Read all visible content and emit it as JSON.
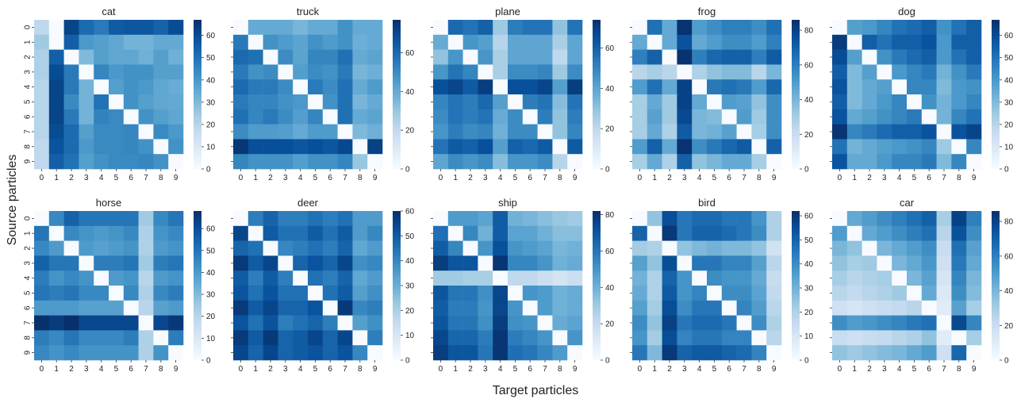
{
  "figure": {
    "ylabel": "Source particles",
    "xlabel": "Target particles",
    "ticks": [
      "0",
      "1",
      "2",
      "3",
      "4",
      "5",
      "6",
      "7",
      "8",
      "9"
    ]
  },
  "colors": {
    "low": "#f7fbff",
    "high": "#08306b"
  },
  "chart_data": [
    {
      "type": "heatmap",
      "title": "cat",
      "vmin": 0,
      "vmax": 67,
      "colorbar_ticks": [
        0,
        10,
        20,
        30,
        40,
        50,
        60
      ],
      "matrix": [
        [
          18,
          0,
          62,
          52,
          48,
          56,
          57,
          57,
          54,
          60
        ],
        [
          25,
          0,
          55,
          40,
          38,
          36,
          32,
          32,
          35,
          35
        ],
        [
          22,
          55,
          0,
          30,
          38,
          36,
          36,
          33,
          38,
          33
        ],
        [
          22,
          60,
          48,
          0,
          45,
          40,
          42,
          42,
          38,
          38
        ],
        [
          20,
          62,
          48,
          32,
          0,
          38,
          42,
          40,
          36,
          34
        ],
        [
          20,
          62,
          44,
          32,
          50,
          0,
          42,
          38,
          36,
          35
        ],
        [
          20,
          62,
          48,
          32,
          46,
          44,
          0,
          42,
          38,
          36
        ],
        [
          20,
          60,
          52,
          38,
          44,
          44,
          45,
          0,
          44,
          40
        ],
        [
          18,
          58,
          52,
          40,
          44,
          44,
          45,
          42,
          0,
          42
        ],
        [
          18,
          55,
          50,
          38,
          42,
          44,
          44,
          45,
          42,
          0
        ]
      ]
    },
    {
      "type": "heatmap",
      "title": "truck",
      "vmin": 0,
      "vmax": 77,
      "colorbar_ticks": [
        0,
        20,
        40,
        60
      ],
      "matrix": [
        [
          0,
          40,
          40,
          40,
          36,
          40,
          40,
          48,
          40,
          40
        ],
        [
          55,
          0,
          48,
          45,
          42,
          48,
          45,
          48,
          38,
          40
        ],
        [
          60,
          58,
          0,
          50,
          42,
          52,
          52,
          58,
          40,
          42
        ],
        [
          55,
          48,
          50,
          0,
          44,
          50,
          48,
          55,
          36,
          38
        ],
        [
          60,
          55,
          55,
          50,
          0,
          55,
          50,
          58,
          40,
          45
        ],
        [
          55,
          52,
          52,
          48,
          46,
          0,
          48,
          58,
          36,
          40
        ],
        [
          58,
          52,
          55,
          50,
          44,
          52,
          0,
          58,
          40,
          42
        ],
        [
          50,
          45,
          45,
          44,
          40,
          45,
          45,
          0,
          35,
          38
        ],
        [
          75,
          68,
          68,
          68,
          66,
          68,
          66,
          70,
          0,
          72
        ],
        [
          52,
          48,
          48,
          48,
          44,
          48,
          48,
          52,
          30,
          0
        ]
      ]
    },
    {
      "type": "heatmap",
      "title": "plane",
      "vmin": 0,
      "vmax": 74,
      "colorbar_ticks": [
        0,
        20,
        40,
        60
      ],
      "matrix": [
        [
          0,
          58,
          55,
          60,
          28,
          52,
          55,
          55,
          30,
          55
        ],
        [
          38,
          0,
          45,
          42,
          22,
          40,
          40,
          40,
          25,
          40
        ],
        [
          30,
          45,
          0,
          45,
          25,
          40,
          40,
          40,
          20,
          40
        ],
        [
          45,
          55,
          50,
          0,
          25,
          48,
          48,
          50,
          28,
          48
        ],
        [
          65,
          68,
          62,
          70,
          0,
          65,
          65,
          68,
          42,
          70
        ],
        [
          50,
          55,
          52,
          58,
          42,
          0,
          52,
          55,
          32,
          55
        ],
        [
          48,
          55,
          52,
          55,
          38,
          48,
          0,
          52,
          30,
          52
        ],
        [
          45,
          52,
          48,
          50,
          36,
          48,
          48,
          0,
          30,
          50
        ],
        [
          55,
          62,
          60,
          65,
          42,
          60,
          58,
          62,
          0,
          62
        ],
        [
          40,
          48,
          45,
          48,
          32,
          45,
          45,
          48,
          22,
          0
        ]
      ]
    },
    {
      "type": "heatmap",
      "title": "frog",
      "vmin": 0,
      "vmax": 86,
      "colorbar_ticks": [
        0,
        20,
        40,
        60,
        80
      ],
      "matrix": [
        [
          0,
          65,
          45,
          85,
          50,
          55,
          60,
          60,
          55,
          65
        ],
        [
          45,
          0,
          45,
          75,
          45,
          50,
          55,
          55,
          50,
          60
        ],
        [
          60,
          70,
          0,
          85,
          60,
          68,
          70,
          70,
          60,
          72
        ],
        [
          25,
          30,
          25,
          0,
          28,
          35,
          38,
          38,
          25,
          40
        ],
        [
          50,
          65,
          45,
          80,
          0,
          62,
          65,
          62,
          50,
          68
        ],
        [
          30,
          45,
          32,
          80,
          45,
          0,
          50,
          48,
          35,
          55
        ],
        [
          30,
          48,
          32,
          78,
          40,
          38,
          0,
          50,
          32,
          55
        ],
        [
          30,
          45,
          28,
          72,
          40,
          42,
          48,
          0,
          30,
          55
        ],
        [
          50,
          70,
          45,
          85,
          55,
          62,
          68,
          72,
          0,
          70
        ],
        [
          30,
          45,
          28,
          70,
          35,
          40,
          45,
          45,
          30,
          0
        ]
      ]
    },
    {
      "type": "heatmap",
      "title": "dog",
      "vmin": 0,
      "vmax": 67,
      "colorbar_ticks": [
        0,
        10,
        20,
        30,
        40,
        50,
        60
      ],
      "matrix": [
        [
          0,
          38,
          40,
          45,
          50,
          52,
          55,
          42,
          50,
          55
        ],
        [
          64,
          0,
          55,
          50,
          55,
          55,
          58,
          40,
          55,
          55
        ],
        [
          60,
          38,
          0,
          42,
          48,
          52,
          55,
          40,
          50,
          55
        ],
        [
          55,
          30,
          38,
          0,
          40,
          45,
          48,
          32,
          42,
          48
        ],
        [
          58,
          30,
          35,
          38,
          0,
          45,
          45,
          30,
          40,
          42
        ],
        [
          55,
          30,
          35,
          40,
          45,
          0,
          42,
          32,
          40,
          45
        ],
        [
          58,
          35,
          38,
          42,
          45,
          48,
          0,
          32,
          45,
          50
        ],
        [
          66,
          45,
          48,
          52,
          55,
          55,
          58,
          0,
          58,
          62
        ],
        [
          50,
          32,
          35,
          38,
          40,
          42,
          45,
          25,
          0,
          45
        ],
        [
          58,
          35,
          35,
          40,
          45,
          45,
          48,
          30,
          45,
          0
        ]
      ]
    },
    {
      "type": "heatmap",
      "title": "horse",
      "vmin": 0,
      "vmax": 68,
      "colorbar_ticks": [
        0,
        10,
        20,
        30,
        40,
        50,
        60
      ],
      "matrix": [
        [
          0,
          45,
          55,
          50,
          50,
          50,
          50,
          25,
          45,
          50
        ],
        [
          50,
          0,
          45,
          42,
          40,
          42,
          45,
          22,
          42,
          45
        ],
        [
          45,
          40,
          0,
          40,
          38,
          40,
          42,
          22,
          40,
          42
        ],
        [
          55,
          50,
          50,
          0,
          48,
          48,
          50,
          25,
          48,
          50
        ],
        [
          48,
          42,
          45,
          42,
          0,
          40,
          42,
          20,
          40,
          42
        ],
        [
          50,
          48,
          50,
          45,
          45,
          0,
          45,
          22,
          45,
          48
        ],
        [
          40,
          40,
          40,
          38,
          38,
          38,
          0,
          20,
          38,
          40
        ],
        [
          68,
          65,
          68,
          62,
          62,
          62,
          62,
          0,
          62,
          66
        ],
        [
          48,
          45,
          50,
          45,
          45,
          45,
          48,
          22,
          0,
          48
        ],
        [
          45,
          42,
          45,
          42,
          42,
          42,
          42,
          22,
          42,
          0
        ]
      ]
    },
    {
      "type": "heatmap",
      "title": "deer",
      "vmin": 0,
      "vmax": 60,
      "colorbar_ticks": [
        0,
        10,
        20,
        30,
        40,
        50,
        60
      ],
      "matrix": [
        [
          0,
          42,
          48,
          42,
          42,
          45,
          42,
          45,
          35,
          35
        ],
        [
          55,
          0,
          50,
          45,
          45,
          50,
          45,
          50,
          35,
          40
        ],
        [
          48,
          45,
          0,
          40,
          42,
          45,
          42,
          48,
          32,
          35
        ],
        [
          58,
          50,
          55,
          0,
          48,
          52,
          48,
          55,
          38,
          40
        ],
        [
          50,
          42,
          50,
          42,
          0,
          45,
          42,
          48,
          32,
          35
        ],
        [
          52,
          45,
          52,
          45,
          45,
          0,
          45,
          50,
          34,
          38
        ],
        [
          58,
          50,
          55,
          48,
          48,
          52,
          0,
          58,
          40,
          42
        ],
        [
          52,
          45,
          52,
          42,
          45,
          48,
          42,
          0,
          34,
          38
        ],
        [
          58,
          50,
          58,
          48,
          50,
          55,
          48,
          55,
          0,
          42
        ],
        [
          55,
          48,
          55,
          48,
          50,
          52,
          48,
          52,
          40,
          0
        ]
      ]
    },
    {
      "type": "heatmap",
      "title": "ship",
      "vmin": 0,
      "vmax": 82,
      "colorbar_ticks": [
        0,
        20,
        40,
        60,
        80
      ],
      "matrix": [
        [
          0,
          48,
          48,
          45,
          68,
          40,
          38,
          35,
          32,
          30
        ],
        [
          62,
          0,
          55,
          40,
          68,
          45,
          45,
          40,
          35,
          35
        ],
        [
          68,
          55,
          0,
          50,
          72,
          50,
          48,
          45,
          38,
          40
        ],
        [
          78,
          70,
          70,
          0,
          80,
          55,
          55,
          50,
          40,
          42
        ],
        [
          30,
          30,
          28,
          28,
          0,
          22,
          22,
          18,
          15,
          18
        ],
        [
          70,
          60,
          60,
          52,
          75,
          0,
          50,
          48,
          40,
          42
        ],
        [
          68,
          58,
          58,
          50,
          75,
          50,
          0,
          48,
          40,
          42
        ],
        [
          70,
          60,
          60,
          52,
          78,
          52,
          50,
          0,
          42,
          45
        ],
        [
          75,
          65,
          65,
          58,
          80,
          58,
          55,
          50,
          0,
          50
        ],
        [
          78,
          70,
          70,
          60,
          80,
          62,
          60,
          55,
          48,
          0
        ]
      ]
    },
    {
      "type": "heatmap",
      "title": "bird",
      "vmin": 0,
      "vmax": 62,
      "colorbar_ticks": [
        0,
        10,
        20,
        30,
        40,
        50,
        60
      ],
      "matrix": [
        [
          0,
          25,
          55,
          45,
          48,
          48,
          45,
          45,
          38,
          20
        ],
        [
          50,
          0,
          60,
          45,
          50,
          50,
          48,
          45,
          40,
          20
        ],
        [
          22,
          20,
          0,
          25,
          28,
          30,
          28,
          28,
          25,
          12
        ],
        [
          35,
          25,
          55,
          0,
          45,
          45,
          42,
          42,
          35,
          18
        ],
        [
          30,
          20,
          50,
          38,
          0,
          40,
          38,
          38,
          32,
          15
        ],
        [
          32,
          20,
          52,
          38,
          42,
          0,
          40,
          40,
          34,
          16
        ],
        [
          35,
          22,
          55,
          40,
          45,
          45,
          0,
          42,
          36,
          18
        ],
        [
          40,
          25,
          58,
          45,
          48,
          48,
          45,
          0,
          40,
          20
        ],
        [
          38,
          22,
          55,
          42,
          45,
          45,
          42,
          42,
          0,
          18
        ],
        [
          45,
          28,
          60,
          50,
          52,
          52,
          50,
          48,
          42,
          0
        ]
      ]
    },
    {
      "type": "heatmap",
      "title": "car",
      "vmin": 0,
      "vmax": 86,
      "colorbar_ticks": [
        0,
        20,
        40,
        60,
        80
      ],
      "matrix": [
        [
          0,
          45,
          50,
          55,
          60,
          65,
          70,
          30,
          80,
          60
        ],
        [
          50,
          0,
          45,
          50,
          55,
          60,
          65,
          25,
          75,
          55
        ],
        [
          40,
          35,
          0,
          40,
          45,
          50,
          55,
          20,
          65,
          48
        ],
        [
          35,
          30,
          32,
          0,
          40,
          45,
          52,
          18,
          62,
          45
        ],
        [
          30,
          25,
          28,
          30,
          0,
          40,
          48,
          15,
          58,
          40
        ],
        [
          25,
          22,
          25,
          28,
          32,
          0,
          45,
          12,
          55,
          38
        ],
        [
          18,
          15,
          18,
          20,
          22,
          25,
          0,
          10,
          48,
          30
        ],
        [
          55,
          50,
          52,
          55,
          58,
          62,
          65,
          0,
          78,
          58
        ],
        [
          20,
          18,
          20,
          22,
          25,
          28,
          35,
          10,
          0,
          30
        ],
        [
          35,
          32,
          35,
          38,
          40,
          45,
          50,
          18,
          68,
          0
        ]
      ]
    }
  ]
}
